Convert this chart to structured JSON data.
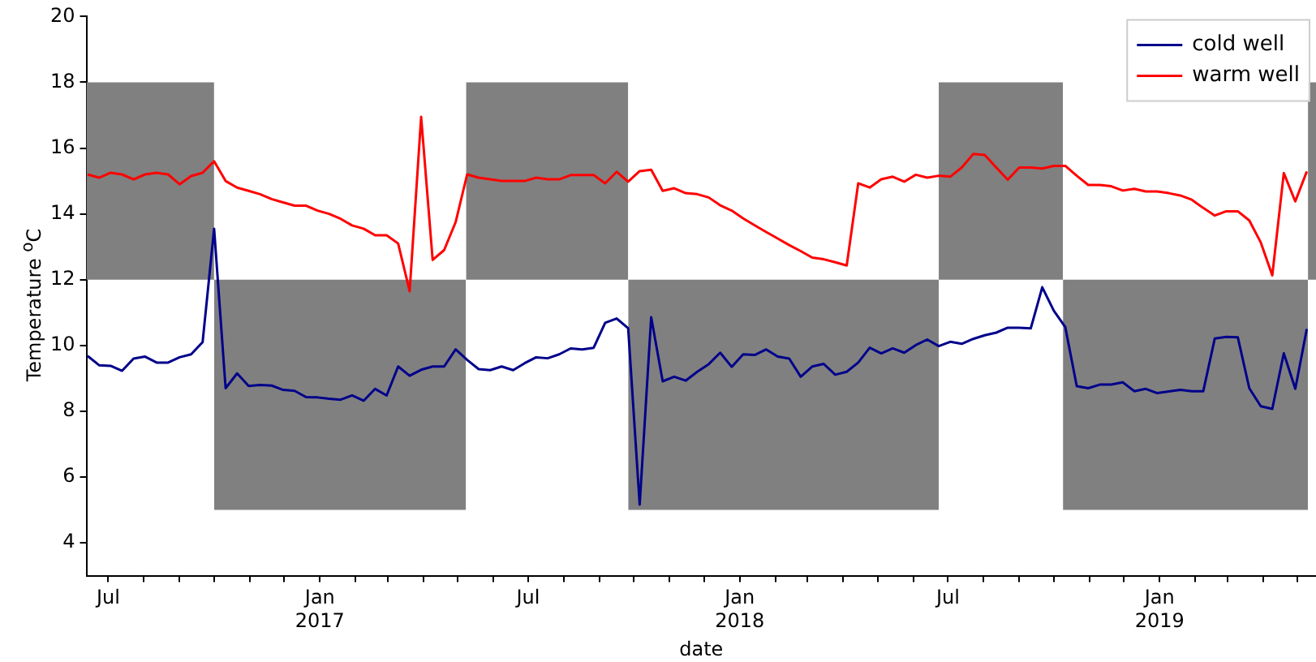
{
  "chart_data": {
    "type": "line",
    "xlabel": "date",
    "ylabel": "Temperature $^{o}$C",
    "legend": "top right",
    "x": [
      "2016-06-13",
      "2016-06-23",
      "2016-07-03",
      "2016-07-13",
      "2016-07-23",
      "2016-08-02",
      "2016-08-12",
      "2016-08-22",
      "2016-09-01",
      "2016-09-11",
      "2016-09-21",
      "2016-10-01",
      "2016-10-11",
      "2016-10-21",
      "2016-10-31",
      "2016-11-10",
      "2016-11-20",
      "2016-11-30",
      "2016-12-10",
      "2016-12-20",
      "2016-12-30",
      "2017-01-09",
      "2017-01-19",
      "2017-01-29",
      "2017-02-08",
      "2017-02-18",
      "2017-02-28",
      "2017-03-10",
      "2017-03-20",
      "2017-03-30",
      "2017-04-09",
      "2017-04-19",
      "2017-04-29",
      "2017-05-09",
      "2017-05-19",
      "2017-05-29",
      "2017-06-08",
      "2017-06-18",
      "2017-06-28",
      "2017-07-08",
      "2017-07-18",
      "2017-07-28",
      "2017-08-07",
      "2017-08-17",
      "2017-08-27",
      "2017-09-06",
      "2017-09-16",
      "2017-09-26",
      "2017-10-06",
      "2017-10-16",
      "2017-10-26",
      "2017-11-05",
      "2017-11-15",
      "2017-11-25",
      "2017-12-05",
      "2017-12-15",
      "2017-12-25",
      "2018-01-04",
      "2018-01-14",
      "2018-01-24",
      "2018-02-03",
      "2018-02-13",
      "2018-02-23",
      "2018-03-05",
      "2018-03-15",
      "2018-03-25",
      "2018-04-04",
      "2018-04-14",
      "2018-04-24",
      "2018-05-04",
      "2018-05-14",
      "2018-05-24",
      "2018-06-03",
      "2018-06-13",
      "2018-06-23",
      "2018-07-03",
      "2018-07-13",
      "2018-07-23",
      "2018-08-02",
      "2018-08-12",
      "2018-08-22",
      "2018-09-01",
      "2018-09-11",
      "2018-09-21",
      "2018-10-01",
      "2018-10-11",
      "2018-10-21",
      "2018-10-31",
      "2018-11-10",
      "2018-11-20",
      "2018-11-30",
      "2018-12-10",
      "2018-12-20",
      "2018-12-30",
      "2019-01-09",
      "2019-01-19",
      "2019-01-29",
      "2019-02-08",
      "2019-02-18",
      "2019-02-28",
      "2019-03-10",
      "2019-03-20",
      "2019-03-30",
      "2019-04-09",
      "2019-04-19",
      "2019-04-29",
      "2019-05-09"
    ],
    "xlim": [
      "2016-06-12",
      "2019-05-17"
    ],
    "xticks": [
      {
        "value": "2016-07",
        "label": "Jul"
      },
      {
        "value": "2016-08",
        "label": null
      },
      {
        "value": "2016-09",
        "label": null
      },
      {
        "value": "2016-10",
        "label": null
      },
      {
        "value": "2016-11",
        "label": null
      },
      {
        "value": "2016-12",
        "label": null
      },
      {
        "value": "2017-01",
        "label": "Jan\n2017"
      },
      {
        "value": "2017-02",
        "label": null
      },
      {
        "value": "2017-03",
        "label": null
      },
      {
        "value": "2017-04",
        "label": null
      },
      {
        "value": "2017-05",
        "label": null
      },
      {
        "value": "2017-06",
        "label": null
      },
      {
        "value": "2017-07",
        "label": "Jul"
      },
      {
        "value": "2017-08",
        "label": null
      },
      {
        "value": "2017-09",
        "label": null
      },
      {
        "value": "2017-10",
        "label": null
      },
      {
        "value": "2017-11",
        "label": null
      },
      {
        "value": "2017-12",
        "label": null
      },
      {
        "value": "2018-01",
        "label": "Jan\n2018"
      },
      {
        "value": "2018-02",
        "label": null
      },
      {
        "value": "2018-03",
        "label": null
      },
      {
        "value": "2018-04",
        "label": null
      },
      {
        "value": "2018-05",
        "label": null
      },
      {
        "value": "2018-06",
        "label": null
      },
      {
        "value": "2018-07",
        "label": "Jul"
      },
      {
        "value": "2018-08",
        "label": null
      },
      {
        "value": "2018-09",
        "label": null
      },
      {
        "value": "2018-10",
        "label": null
      },
      {
        "value": "2018-11",
        "label": null
      },
      {
        "value": "2018-12",
        "label": null
      },
      {
        "value": "2019-01",
        "label": "Jan\n2019"
      },
      {
        "value": "2019-02",
        "label": null
      },
      {
        "value": "2019-03",
        "label": null
      },
      {
        "value": "2019-04",
        "label": null
      },
      {
        "value": "2019-05",
        "label": null
      }
    ],
    "ylim": [
      3,
      20
    ],
    "yticks": [
      4,
      6,
      8,
      10,
      12,
      14,
      16,
      18,
      20
    ],
    "series": [
      {
        "name": "cold well",
        "color": "#00008b",
        "values": [
          9.68,
          9.4,
          9.38,
          9.23,
          9.6,
          9.66,
          9.48,
          9.48,
          9.64,
          9.73,
          10.1,
          13.55,
          8.7,
          9.15,
          8.77,
          8.8,
          8.78,
          8.65,
          8.62,
          8.43,
          8.42,
          8.38,
          8.35,
          8.48,
          8.32,
          8.68,
          8.48,
          9.36,
          9.08,
          9.26,
          9.36,
          9.36,
          9.88,
          9.56,
          9.28,
          9.25,
          9.36,
          9.25,
          9.46,
          9.64,
          9.61,
          9.73,
          9.91,
          9.88,
          9.93,
          10.69,
          10.82,
          10.52,
          5.16,
          10.86,
          8.91,
          9.05,
          8.93,
          9.2,
          9.43,
          9.78,
          9.35,
          9.73,
          9.71,
          9.88,
          9.66,
          9.6,
          9.05,
          9.36,
          9.44,
          9.11,
          9.2,
          9.48,
          9.93,
          9.76,
          9.91,
          9.78,
          10.01,
          10.18,
          9.98,
          10.11,
          10.05,
          10.2,
          10.31,
          10.39,
          10.54,
          10.54,
          10.52,
          11.77,
          11.06,
          10.56,
          8.76,
          8.7,
          8.81,
          8.81,
          8.88,
          8.61,
          8.68,
          8.55,
          8.6,
          8.65,
          8.61,
          8.61,
          10.21,
          10.26,
          10.25,
          8.7,
          8.15,
          8.07,
          9.76,
          8.68,
          10.5
        ]
      },
      {
        "name": "warm well",
        "color": "#ff0000",
        "values": [
          15.2,
          15.1,
          15.25,
          15.2,
          15.05,
          15.2,
          15.25,
          15.2,
          14.9,
          15.15,
          15.25,
          15.6,
          15.0,
          14.8,
          14.7,
          14.6,
          14.45,
          14.35,
          14.25,
          14.25,
          14.1,
          14.0,
          13.85,
          13.65,
          13.55,
          13.35,
          13.35,
          13.1,
          11.65,
          16.95,
          12.6,
          12.9,
          13.75,
          15.2,
          15.1,
          15.05,
          15.0,
          15.0,
          15.0,
          15.1,
          15.05,
          15.05,
          15.18,
          15.18,
          15.18,
          14.93,
          15.28,
          14.98,
          15.3,
          15.34,
          14.7,
          14.78,
          14.63,
          14.6,
          14.5,
          14.26,
          14.1,
          13.86,
          13.65,
          13.45,
          13.25,
          13.05,
          12.87,
          12.67,
          12.62,
          12.53,
          12.43,
          14.93,
          14.8,
          15.05,
          15.13,
          14.98,
          15.19,
          15.1,
          15.16,
          15.13,
          15.41,
          15.82,
          15.79,
          15.41,
          15.04,
          15.41,
          15.41,
          15.38,
          15.46,
          15.46,
          15.16,
          14.88,
          14.88,
          14.84,
          14.71,
          14.76,
          14.68,
          14.68,
          14.63,
          14.56,
          14.43,
          14.18,
          13.95,
          14.08,
          14.08,
          13.8,
          13.13,
          12.13,
          15.24,
          14.38,
          15.29
        ]
      },
      {
        "type": "line",
        "color": "#808080",
        "x": [
          "2016-06-12",
          "2016-10-01"
        ],
        "values": [
          null,
          null
        ],
        "lower": [
          12,
          12
        ],
        "upper": [
          18,
          18
        ]
      },
      {
        "type": "line",
        "color": "#808080",
        "x": [
          "2016-10-01",
          "2017-05-08"
        ],
        "values": [
          null,
          null
        ],
        "lower": [
          5,
          5
        ],
        "upper": [
          12,
          12
        ]
      },
      {
        "type": "line",
        "color": "#808080",
        "x": [
          "2017-05-08",
          "2017-09-26"
        ],
        "values": [
          null,
          null
        ],
        "lower": [
          12,
          12
        ],
        "upper": [
          18,
          18
        ]
      },
      {
        "type": "line",
        "color": "#808080",
        "x": [
          "2017-09-26",
          "2018-06-23"
        ],
        "values": [
          null,
          null
        ],
        "lower": [
          5,
          5
        ],
        "upper": [
          12,
          12
        ]
      },
      {
        "type": "line",
        "color": "#808080",
        "x": [
          "2018-06-23",
          "2018-10-09"
        ],
        "values": [
          null,
          null
        ],
        "lower": [
          12,
          12
        ],
        "upper": [
          18,
          18
        ]
      },
      {
        "type": "line",
        "color": "#808080",
        "x": [
          "2018-10-09",
          "2019-05-10"
        ],
        "values": [
          null,
          null
        ],
        "lower": [
          5,
          5
        ],
        "upper": [
          12,
          12
        ]
      },
      {
        "type": "line",
        "color": "#808080",
        "x": [
          "2019-05-10",
          "2019-05-17"
        ],
        "values": [
          null,
          null
        ],
        "lower": [
          12,
          12
        ],
        "upper": [
          18,
          18
        ]
      }
    ]
  }
}
